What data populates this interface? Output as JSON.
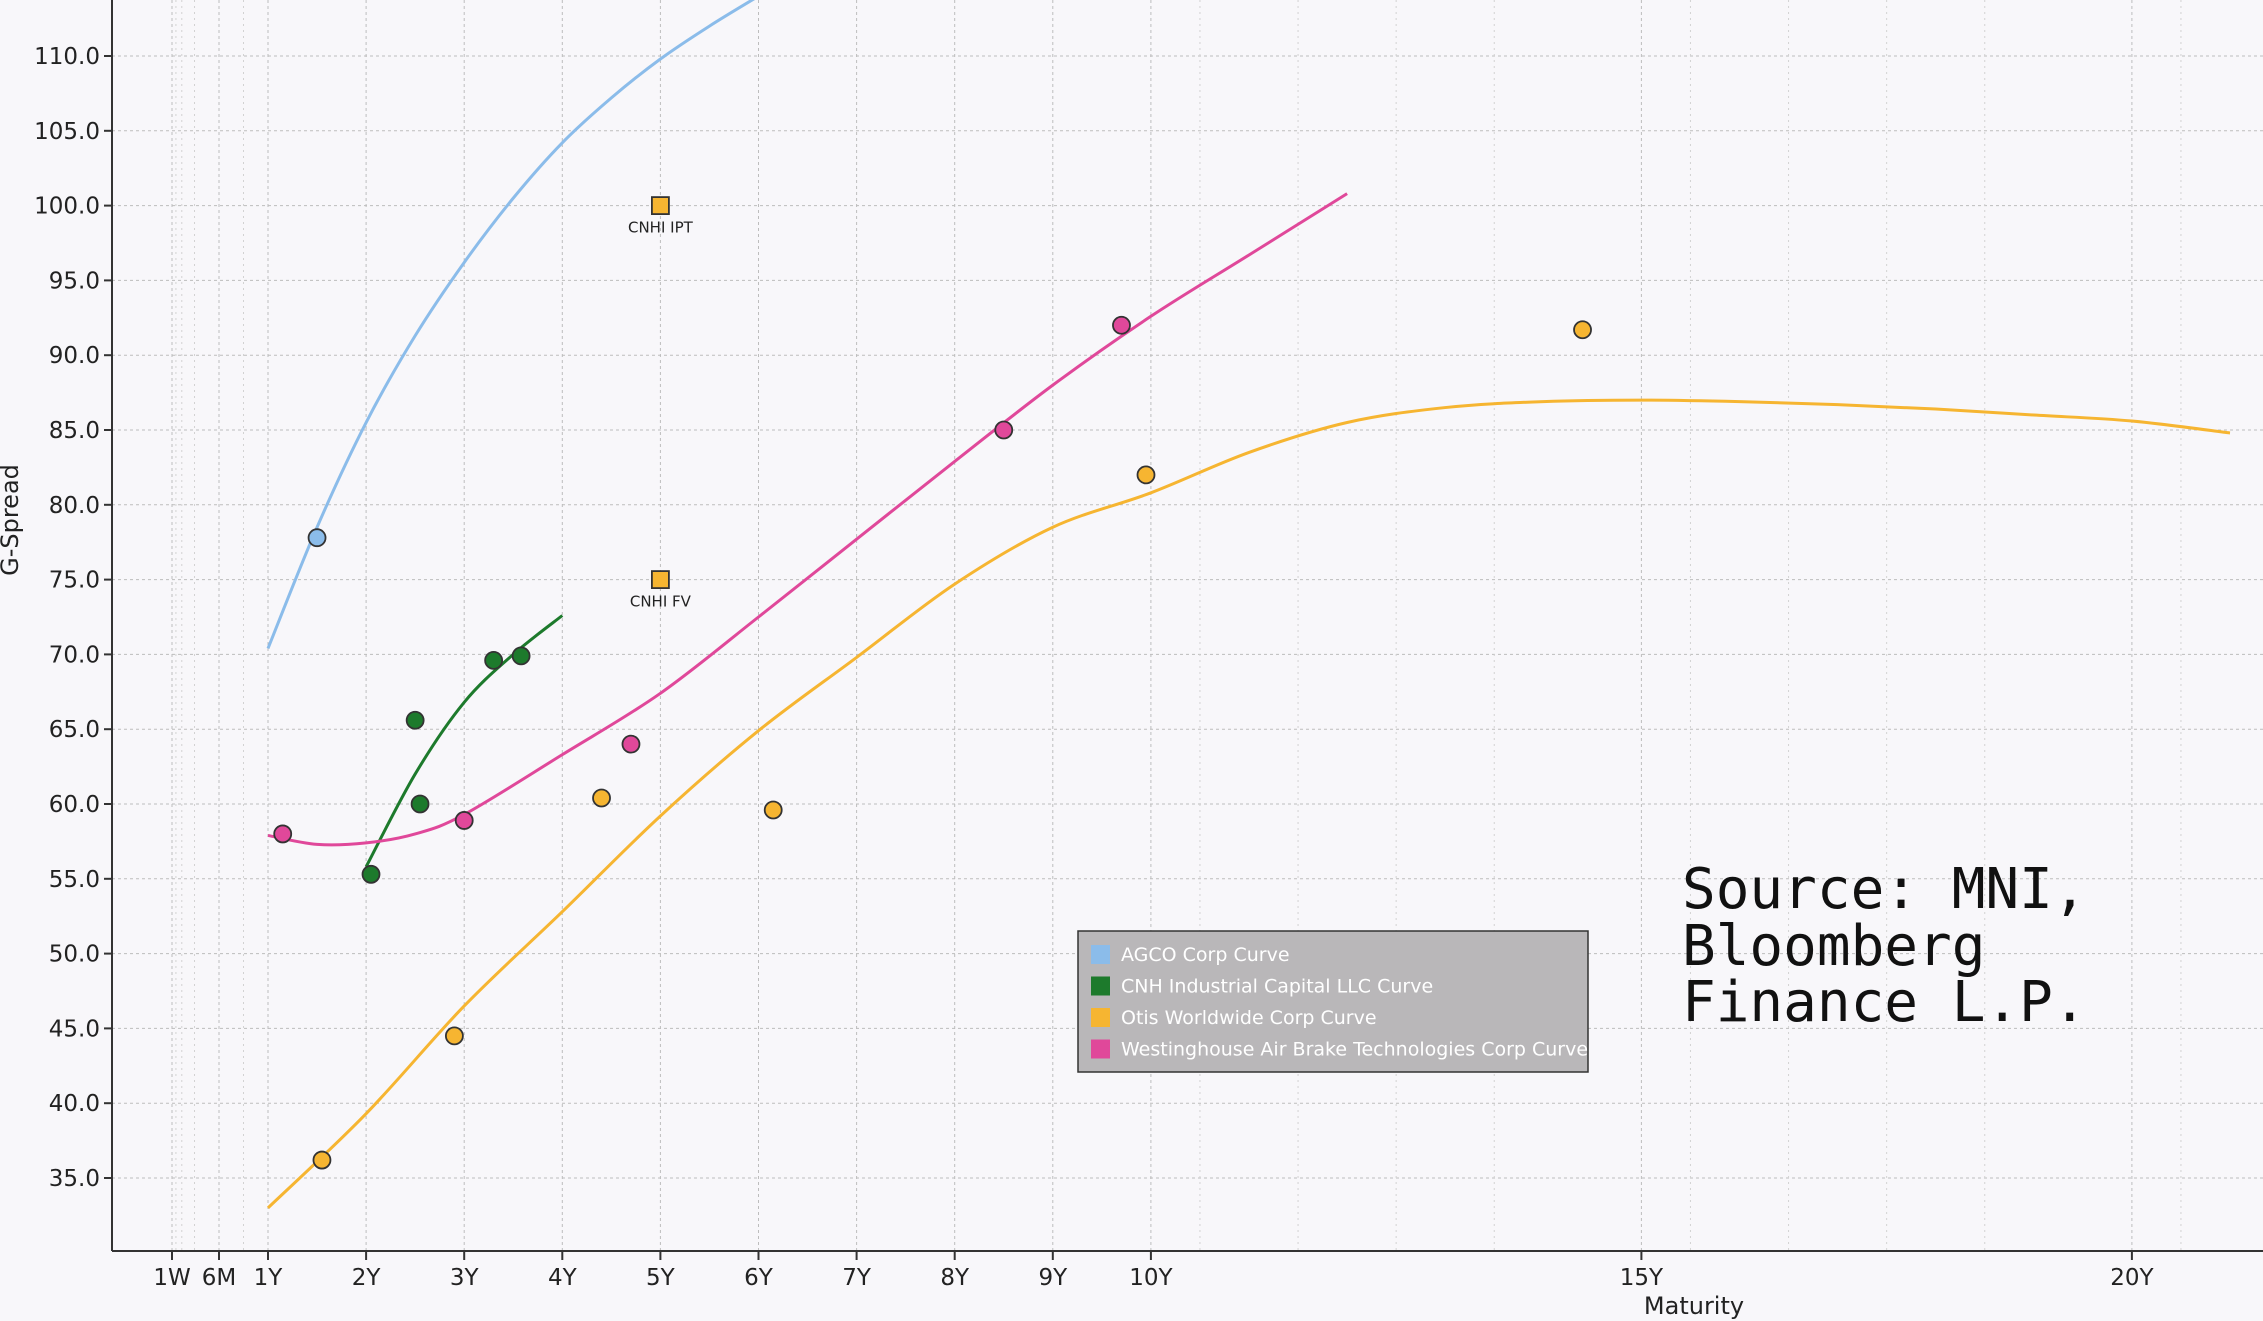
{
  "chart_data": {
    "type": "scatter",
    "xlabel": "Maturity",
    "ylabel": "G-Spread",
    "ylim": [
      29.5,
      113.5
    ],
    "y_ticks": [
      35,
      40,
      45,
      50,
      55,
      60,
      65,
      70,
      75,
      80,
      85,
      90,
      95,
      100,
      105,
      110
    ],
    "x_ticks": [
      {
        "label": "1W",
        "value": 0.02
      },
      {
        "label": "6M",
        "value": 0.5
      },
      {
        "label": "1Y",
        "value": 1
      },
      {
        "label": "2Y",
        "value": 2
      },
      {
        "label": "3Y",
        "value": 3
      },
      {
        "label": "4Y",
        "value": 4
      },
      {
        "label": "5Y",
        "value": 5
      },
      {
        "label": "6Y",
        "value": 6
      },
      {
        "label": "7Y",
        "value": 7
      },
      {
        "label": "8Y",
        "value": 8
      },
      {
        "label": "9Y",
        "value": 9
      },
      {
        "label": "10Y",
        "value": 10
      },
      {
        "label": "15Y",
        "value": 15
      },
      {
        "label": "20Y",
        "value": 20
      }
    ],
    "grid": true,
    "legend_position": "bottom-center",
    "series": [
      {
        "name": "AGCO Corp Curve",
        "color": "#8bbcea",
        "points": [
          {
            "x": 1.5,
            "y": 77.8
          }
        ],
        "curve": [
          [
            1,
            70.4
          ],
          [
            1.5,
            78.5
          ],
          [
            2,
            85.5
          ],
          [
            2.5,
            91.3
          ],
          [
            3,
            96.2
          ],
          [
            3.5,
            100.5
          ],
          [
            4,
            104.2
          ],
          [
            4.5,
            107.2
          ],
          [
            5,
            109.8
          ],
          [
            5.5,
            112.0
          ],
          [
            6,
            114.0
          ]
        ]
      },
      {
        "name": "CNH Industrial Capital LLC Curve",
        "color": "#1d7a2c",
        "points": [
          {
            "x": 2.05,
            "y": 55.3
          },
          {
            "x": 2.5,
            "y": 65.6
          },
          {
            "x": 2.55,
            "y": 60.0
          },
          {
            "x": 3.3,
            "y": 69.6
          },
          {
            "x": 3.58,
            "y": 69.9
          }
        ],
        "curve": [
          [
            2,
            55.8
          ],
          [
            2.5,
            62.0
          ],
          [
            3,
            66.8
          ],
          [
            3.5,
            70.0
          ],
          [
            4,
            72.6
          ]
        ]
      },
      {
        "name": "Otis Worldwide Corp Curve",
        "color": "#f6b531",
        "points": [
          {
            "x": 1.55,
            "y": 36.2
          },
          {
            "x": 2.9,
            "y": 44.5
          },
          {
            "x": 4.4,
            "y": 60.4
          },
          {
            "x": 6.15,
            "y": 59.6
          },
          {
            "x": 9.95,
            "y": 82.0
          },
          {
            "x": 14.4,
            "y": 91.7
          }
        ],
        "curve": [
          [
            1,
            33.0
          ],
          [
            2,
            39.3
          ],
          [
            3,
            46.5
          ],
          [
            4,
            52.8
          ],
          [
            5,
            59.2
          ],
          [
            6,
            64.9
          ],
          [
            7,
            69.8
          ],
          [
            8,
            74.7
          ],
          [
            9,
            78.5
          ],
          [
            10,
            80.8
          ],
          [
            11,
            83.5
          ],
          [
            12,
            85.5
          ],
          [
            13,
            86.5
          ],
          [
            14,
            86.9
          ],
          [
            15,
            87.0
          ],
          [
            16,
            86.9
          ],
          [
            17,
            86.7
          ],
          [
            18,
            86.4
          ],
          [
            19,
            86.0
          ],
          [
            20,
            85.6
          ],
          [
            21,
            84.8
          ]
        ]
      },
      {
        "name": "Westinghouse Air Brake Technologies Corp Curve",
        "color": "#e0489a",
        "points": [
          {
            "x": 1.15,
            "y": 58.0
          },
          {
            "x": 3.0,
            "y": 58.9
          },
          {
            "x": 4.7,
            "y": 64.0
          },
          {
            "x": 8.5,
            "y": 85.0
          },
          {
            "x": 9.7,
            "y": 92.0
          }
        ],
        "curve": [
          [
            1,
            57.9
          ],
          [
            1.5,
            57.3
          ],
          [
            2,
            57.4
          ],
          [
            2.5,
            58.0
          ],
          [
            3,
            59.3
          ],
          [
            4,
            63.3
          ],
          [
            5,
            67.4
          ],
          [
            6,
            72.5
          ],
          [
            7,
            77.7
          ],
          [
            8,
            82.9
          ],
          [
            9,
            88.0
          ],
          [
            10,
            92.6
          ],
          [
            11,
            96.7
          ],
          [
            12,
            100.8
          ]
        ]
      }
    ],
    "annotations": [
      {
        "label": "CNHI IPT",
        "x": 5,
        "y": 100.0,
        "color": "#f6b531"
      },
      {
        "label": "CNHI FV",
        "x": 5,
        "y": 75.0,
        "color": "#f6b531"
      }
    ],
    "source_note": [
      "Source: MNI,",
      "Bloomberg",
      "Finance L.P."
    ]
  }
}
